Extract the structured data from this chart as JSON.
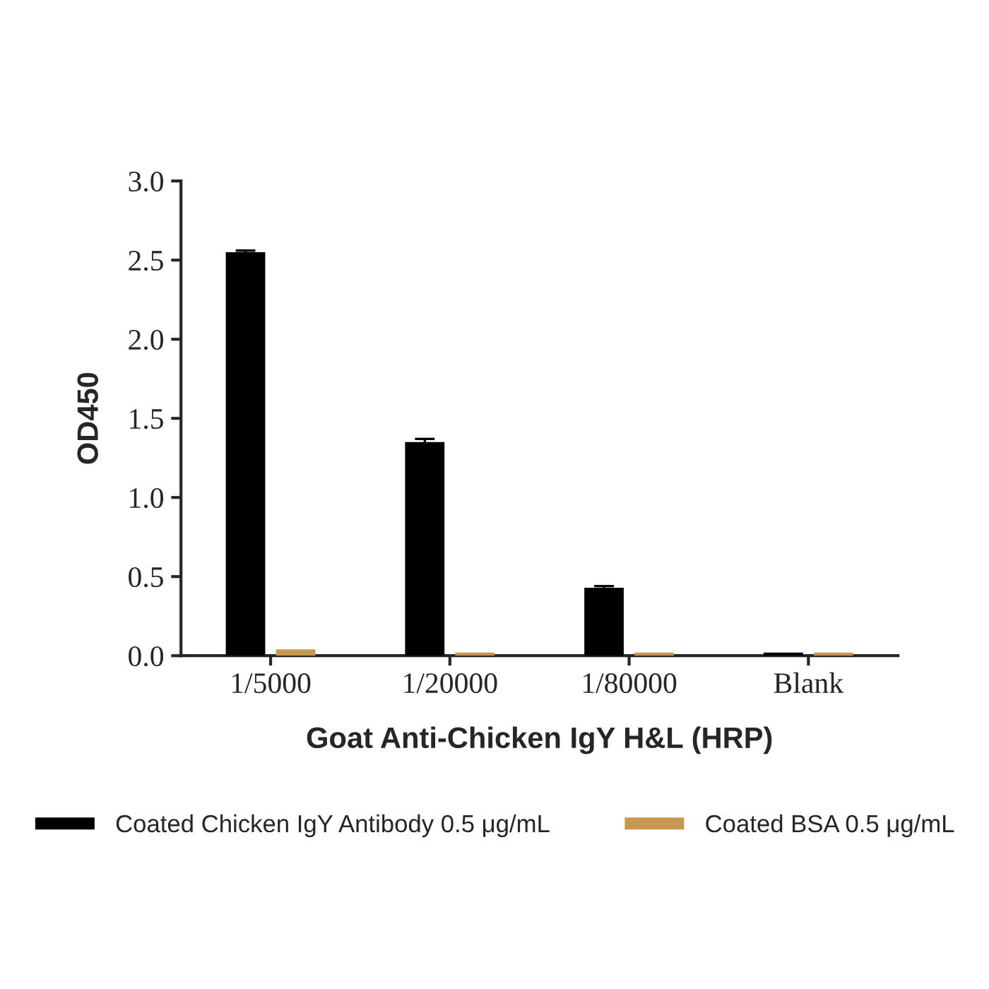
{
  "chart_data": {
    "type": "bar",
    "xlabel": "Goat Anti-Chicken IgY H&L (HRP)",
    "ylabel": "OD450",
    "categories": [
      "1/5000",
      "1/20000",
      "1/80000",
      "Blank"
    ],
    "series": [
      {
        "name": "Coated Chicken IgY Antibody 0.5 μg/mL",
        "color": "#000000",
        "values": [
          2.55,
          1.35,
          0.43,
          0.02
        ],
        "errors": [
          0.01,
          0.02,
          0.01,
          null
        ]
      },
      {
        "name": "Coated BSA 0.5 μg/mL",
        "color": "#c8974f",
        "values": [
          0.04,
          0.02,
          0.02,
          0.02
        ]
      }
    ],
    "ylim": [
      0,
      3.0
    ],
    "yticks": [
      {
        "value": 0,
        "label": "0.0"
      },
      {
        "value": 0.5,
        "label": "0.5"
      },
      {
        "value": 1,
        "label": "1.0"
      },
      {
        "value": 1.5,
        "label": "1.5"
      },
      {
        "value": 2,
        "label": "2.0"
      },
      {
        "value": 2.5,
        "label": "2.5"
      },
      {
        "value": 3,
        "label": "3.0"
      }
    ],
    "grid": false,
    "legend": "bottom"
  }
}
